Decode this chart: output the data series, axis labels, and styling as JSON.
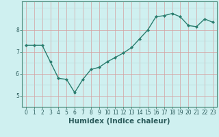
{
  "x": [
    0,
    1,
    2,
    3,
    4,
    5,
    6,
    7,
    8,
    9,
    10,
    11,
    12,
    13,
    14,
    15,
    16,
    17,
    18,
    19,
    20,
    21,
    22,
    23
  ],
  "y": [
    7.3,
    7.3,
    7.3,
    6.55,
    5.8,
    5.75,
    5.15,
    5.75,
    6.2,
    6.3,
    6.55,
    6.75,
    6.95,
    7.2,
    7.6,
    8.0,
    8.6,
    8.65,
    8.75,
    8.6,
    8.2,
    8.15,
    8.5,
    8.35
  ],
  "line_color": "#2a7d6e",
  "marker": "D",
  "marker_size": 2.0,
  "bg_color": "#cff0f0",
  "grid_color_major": "#d4a0a0",
  "grid_color_minor": "#b8d8d8",
  "xlabel": "Humidex (Indice chaleur)",
  "ylim": [
    4.5,
    9.3
  ],
  "xlim": [
    -0.5,
    23.5
  ],
  "yticks": [
    5,
    6,
    7,
    8
  ],
  "xticks": [
    0,
    1,
    2,
    3,
    4,
    5,
    6,
    7,
    8,
    9,
    10,
    11,
    12,
    13,
    14,
    15,
    16,
    17,
    18,
    19,
    20,
    21,
    22,
    23
  ],
  "tick_label_size": 5.5,
  "xlabel_size": 7.5,
  "line_width": 1.0,
  "spine_color": "#4a8a7a",
  "tick_color": "#4a8a7a",
  "label_color": "#2a5a5a"
}
